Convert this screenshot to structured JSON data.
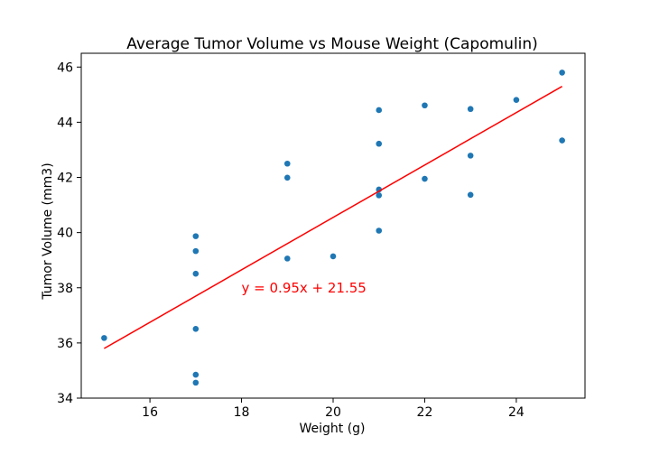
{
  "chart_data": {
    "type": "scatter",
    "title": "Average Tumor Volume vs Mouse Weight (Capomulin)",
    "xlabel": "Weight (g)",
    "ylabel": "Tumor Volume (mm3)",
    "xlim": [
      14.5,
      25.5
    ],
    "ylim": [
      34,
      46.5
    ],
    "xticks": [
      16,
      18,
      20,
      22,
      24
    ],
    "yticks": [
      34,
      36,
      38,
      40,
      42,
      44,
      46
    ],
    "grid": false,
    "series": [
      {
        "color": "#1f77b4",
        "points": [
          [
            15,
            36.18
          ],
          [
            17,
            39.87
          ],
          [
            17,
            39.33
          ],
          [
            17,
            38.51
          ],
          [
            17,
            36.51
          ],
          [
            17,
            34.85
          ],
          [
            17,
            34.56
          ],
          [
            19,
            42.5
          ],
          [
            19,
            41.99
          ],
          [
            19,
            39.06
          ],
          [
            20,
            39.14
          ],
          [
            21,
            44.44
          ],
          [
            21,
            43.22
          ],
          [
            21,
            41.56
          ],
          [
            21,
            41.35
          ],
          [
            21,
            40.07
          ],
          [
            22,
            44.61
          ],
          [
            22,
            41.95
          ],
          [
            23,
            44.48
          ],
          [
            23,
            42.79
          ],
          [
            23,
            41.37
          ],
          [
            24,
            44.81
          ],
          [
            25,
            45.8
          ],
          [
            25,
            43.34
          ]
        ]
      }
    ],
    "regression": {
      "slope": 0.95,
      "intercept": 21.55,
      "x_range": [
        15,
        25
      ],
      "color": "#ff0000",
      "label": "y = 0.95x + 21.55",
      "label_position": [
        18,
        38
      ]
    }
  }
}
